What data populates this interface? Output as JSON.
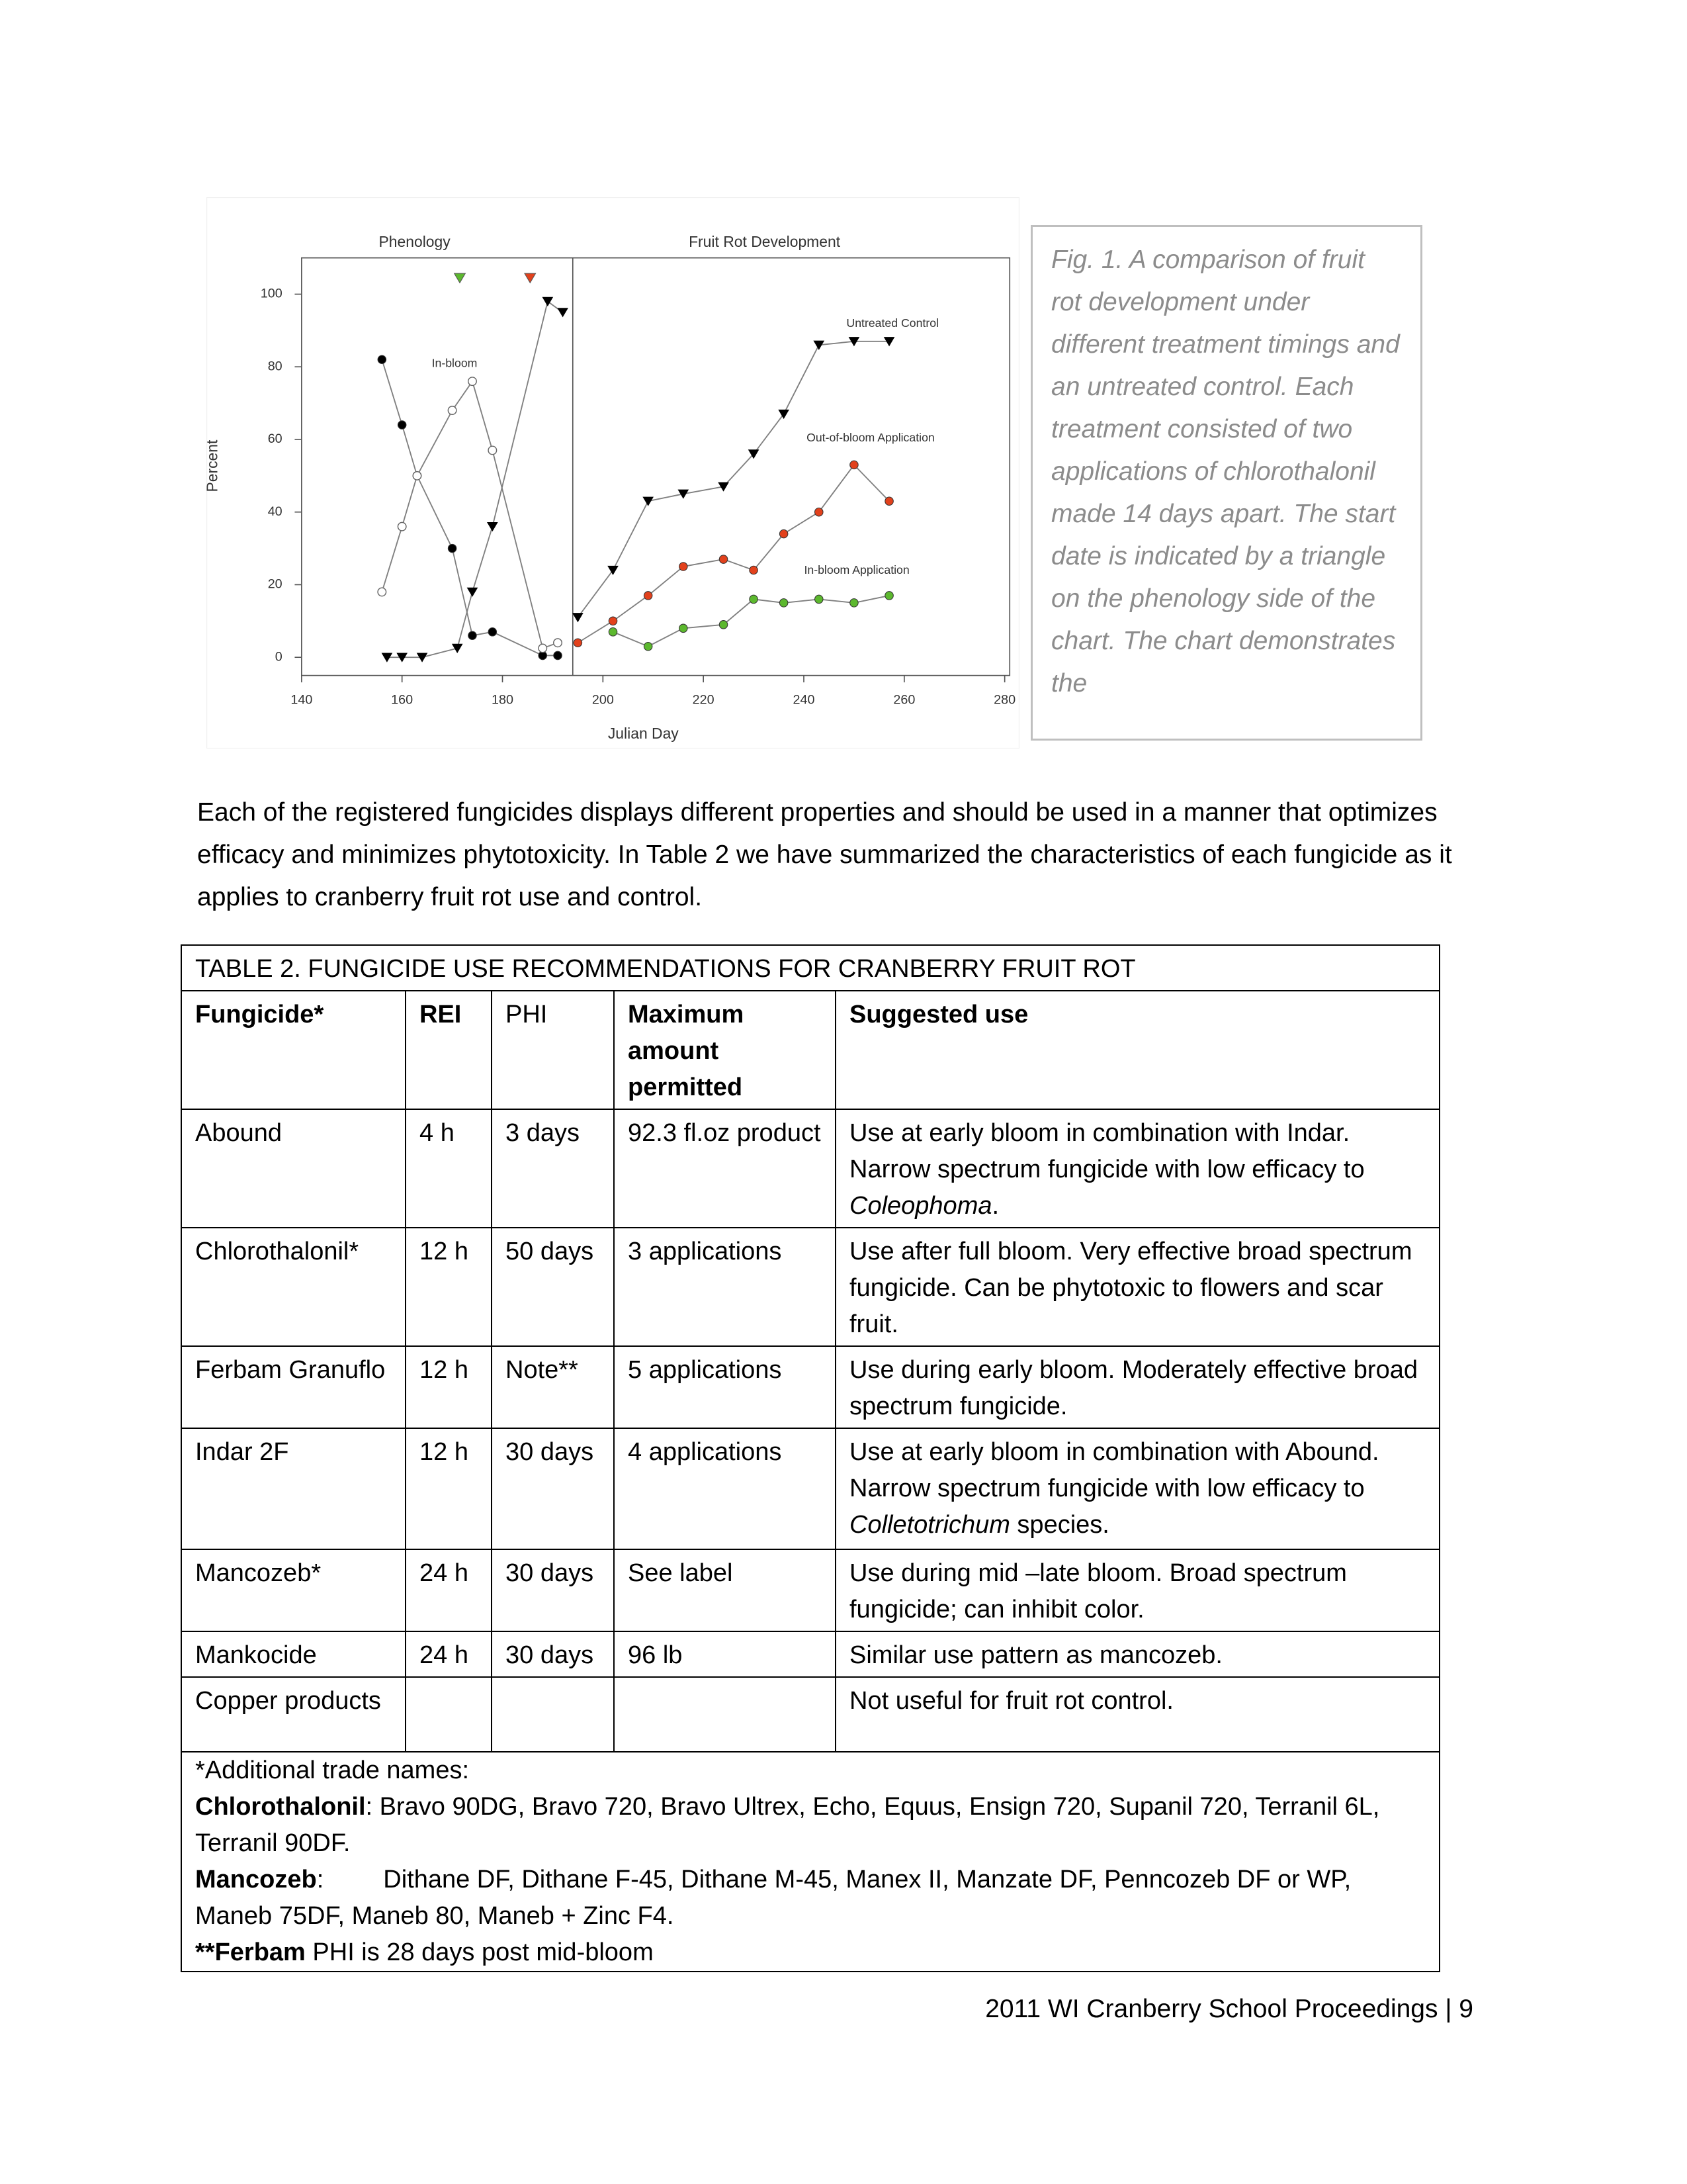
{
  "figure": {
    "chart_data": {
      "type": "line",
      "xlabel": "Julian Day",
      "ylabel": "Percent",
      "xlim": [
        140,
        281
      ],
      "ylim": [
        -5,
        110
      ],
      "xticks": [
        140,
        160,
        180,
        200,
        220,
        240,
        260,
        280
      ],
      "yticks": [
        0,
        20,
        40,
        60,
        80,
        100
      ],
      "line_color": "#808080",
      "divider_x": 194,
      "annotations": [
        "Phenology",
        "Fruit Rot Development",
        "In-bloom"
      ],
      "start_markers": [
        {
          "x": 171.5,
          "y": 104.5,
          "color": "#5cb82e"
        },
        {
          "x": 185.5,
          "y": 104.5,
          "color": "#e2411c"
        }
      ],
      "series": [
        {
          "marker": "circle",
          "color": "#000000",
          "x": [
            156,
            160,
            163,
            170,
            174,
            178,
            188,
            191
          ],
          "values": [
            82,
            64,
            50,
            30,
            6,
            7,
            0.5,
            0.5
          ]
        },
        {
          "marker": "open-circle",
          "color": "#ffffff",
          "x": [
            156,
            160,
            163,
            170,
            174,
            178,
            188,
            191
          ],
          "values": [
            18,
            36,
            50,
            68,
            76,
            57,
            2.5,
            4
          ]
        },
        {
          "marker": "triangle",
          "color": "#000000",
          "x": [
            157,
            160,
            164,
            171,
            174,
            178,
            189,
            192
          ],
          "values": [
            0,
            0,
            0,
            2.5,
            18,
            36,
            98,
            95
          ]
        },
        {
          "name": "Untreated Control",
          "marker": "triangle",
          "color": "#000000",
          "x": [
            195,
            202,
            209,
            216,
            224,
            230,
            236,
            243,
            250,
            257
          ],
          "values": [
            11,
            24,
            43,
            45,
            47,
            56,
            67,
            86,
            87,
            87
          ]
        },
        {
          "name": "Out-of-bloom Application",
          "marker": "circle",
          "color": "#e2411c",
          "x": [
            195,
            202,
            209,
            216,
            224,
            230,
            236,
            243,
            250,
            257
          ],
          "values": [
            4,
            10,
            17,
            25,
            27,
            24,
            34,
            40,
            53,
            43
          ]
        },
        {
          "name": "In-bloom Application",
          "marker": "circle",
          "color": "#5cb82e",
          "x": [
            202,
            209,
            216,
            224,
            230,
            236,
            243,
            250,
            257
          ],
          "values": [
            7,
            3,
            8,
            9,
            16,
            15,
            16,
            15,
            17
          ]
        }
      ]
    },
    "caption": "Fig. 1.  A comparison of fruit rot development under different treatment timings and an untreated control.  Each treatment consisted of two applications of chlorothalonil made 14 days apart.  The start date is indicated by a triangle on the phenology side of the chart.  The chart demonstrates the"
  },
  "paragraph": "Each of the registered fungicides displays different properties and should be used in a manner that optimizes efficacy and minimizes phytotoxicity.  In Table 2 we have summarized the characteristics of each fungicide as it applies to cranberry fruit rot use and control.",
  "table": {
    "title": "TABLE 2.  FUNGICIDE USE RECOMMENDATIONS FOR  CRANBERRY FRUIT ROT",
    "header": [
      "Fungicide*",
      "REI",
      "PHI",
      "Maximum amount permitted",
      "Suggested use"
    ],
    "rows": [
      [
        "Abound",
        "4 h",
        "3 days",
        "92.3 fl.oz product",
        [
          "Use at early bloom in combination with Indar. Narrow spectrum fungicide with low efficacy to ",
          "Coleophoma",
          "."
        ]
      ],
      [
        "Chlorothalonil*",
        "12 h",
        "50 days",
        "3 applications",
        "Use after full bloom.  Very effective broad spectrum fungicide. Can be phytotoxic to flowers and scar fruit."
      ],
      [
        "Ferbam Granuflo",
        "12 h",
        "Note**",
        "5 applications",
        "Use during early bloom. Moderately effective broad spectrum fungicide."
      ],
      [
        "Indar 2F",
        "12 h",
        "30 days",
        "4 applications",
        [
          "Use at early bloom in combination with Abound.  Narrow spectrum fungicide with low efficacy to ",
          "Colletotrichum",
          " species."
        ]
      ],
      [
        "Mancozeb*",
        "24 h",
        "30 days",
        "See label",
        "Use during mid –late bloom. Broad spectrum fungicide; can inhibit color."
      ],
      [
        "Mankocide",
        "24 h",
        "30 days",
        "96 lb",
        "Similar use pattern as mancozeb."
      ],
      [
        "Copper products",
        null,
        null,
        null,
        "Not useful for fruit rot control."
      ]
    ],
    "footnote": {
      "heading": "*Additional trade names:",
      "chlorothalonil": {
        "name": "Chlorothalonil",
        "text": ": Bravo 90DG, Bravo 720, Bravo Ultrex, Echo, Equus, Ensign 720, Supanil 720, Terranil 6L, Terranil 90DF."
      },
      "mancozeb": {
        "name": "Mancozeb",
        "sep": ":",
        "text": "Dithane DF, Dithane F-45, Dithane M-45, Manex II, Manzate DF, Penncozeb DF or WP, Maneb 75DF, Maneb 80, Maneb + Zinc F4."
      },
      "ferbam": {
        "name": "**Ferbam",
        "text": " PHI is 28 days post mid-bloom"
      }
    }
  },
  "footer": "2011 WI Cranberry School Proceedings | 9"
}
